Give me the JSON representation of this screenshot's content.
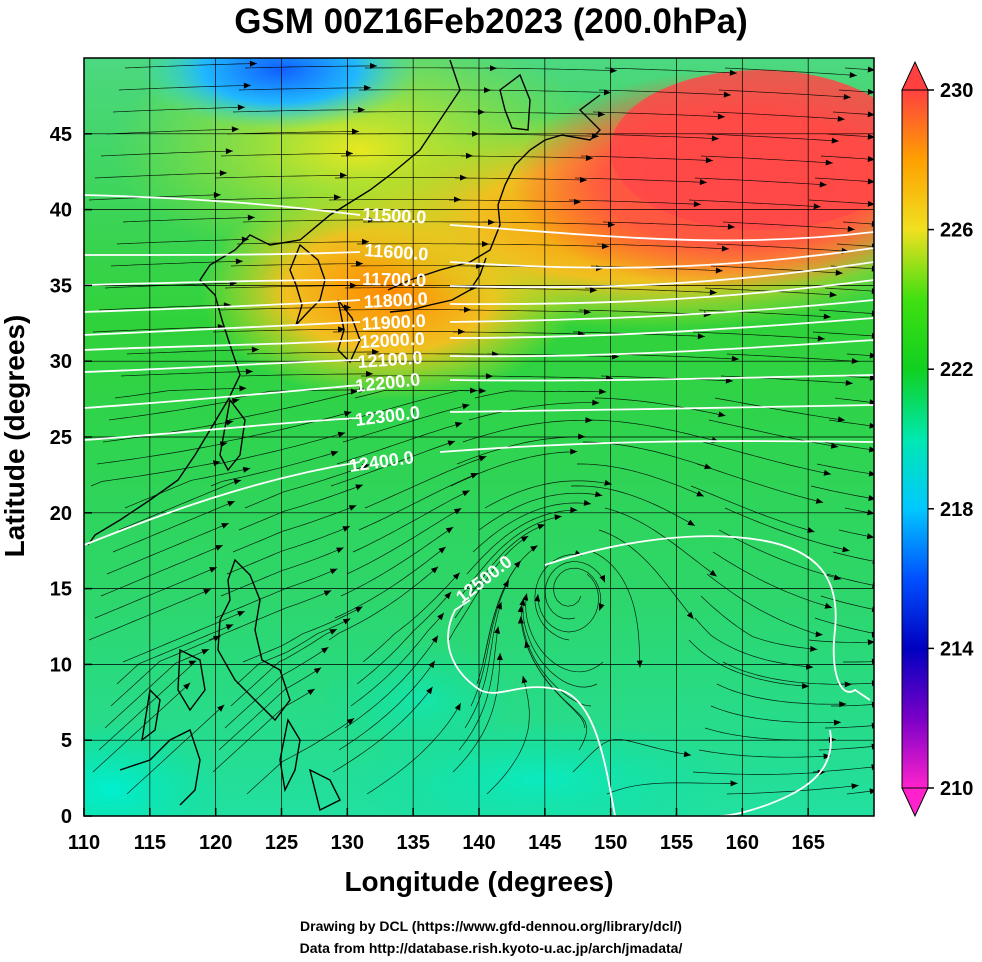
{
  "figure": {
    "title": "GSM 00Z16Feb2023 (200.0hPa)",
    "xlabel": "Longitude (degrees)",
    "ylabel": "Latitude  (degrees)",
    "credit_line1": "Drawing by DCL (https://www.gfd-dennou.org/library/dcl/)",
    "credit_line2": "Data from http://database.rish.kyoto-u.ac.jp/arch/jmadata/"
  },
  "chart_data": {
    "type": "heatmap",
    "x_range": [
      110,
      170
    ],
    "y_range": [
      0,
      50
    ],
    "x_ticks": [
      "110",
      "115",
      "120",
      "125",
      "130",
      "135",
      "140",
      "145",
      "150",
      "155",
      "160",
      "165"
    ],
    "y_ticks": [
      "0",
      "5",
      "10",
      "15",
      "20",
      "25",
      "30",
      "35",
      "40",
      "45"
    ],
    "colorbar": {
      "min": 210,
      "max": 230,
      "tick_labels": [
        "230",
        "226",
        "222",
        "218",
        "214",
        "210"
      ],
      "colors": [
        "#ff22cc",
        "#7a00c8",
        "#0000c0",
        "#0050ff",
        "#00c8ff",
        "#00e8b0",
        "#10d020",
        "#40e010",
        "#f0e020",
        "#ffa000",
        "#ff4040"
      ]
    },
    "contour_labels": [
      "11500.0",
      "11600.0",
      "11700.0",
      "11800.0",
      "11900.0",
      "12000.0",
      "12100.0",
      "12200.0",
      "12300.0",
      "12400.0",
      "12500.0"
    ],
    "contour_color": "#ffffff",
    "coastline_color": "#000000",
    "streamline_color": "#000000"
  }
}
